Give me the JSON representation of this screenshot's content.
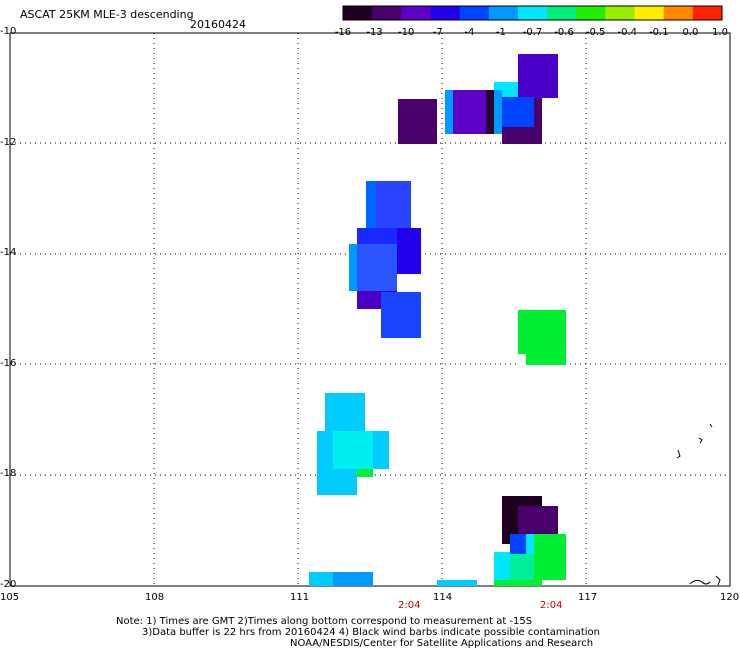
{
  "header": {
    "title": "ASCAT 25KM MLE-3 descending",
    "date": "20160424"
  },
  "colorbar": {
    "labels": [
      "-16",
      "-13",
      "-10",
      "-7",
      "-4",
      "-1",
      "-0.7",
      "-0.6",
      "-0.5",
      "-0.4",
      "-0.1",
      "0.0",
      "1.0"
    ],
    "colors": [
      "#200020",
      "#48006a",
      "#5d00c8",
      "#2200ee",
      "#0044ff",
      "#0099ff",
      "#00e6ff",
      "#00ee77",
      "#22ee00",
      "#99ee00",
      "#ffee00",
      "#ff8800",
      "#ff2200"
    ]
  },
  "axes": {
    "lat_labels": [
      "-10",
      "-12",
      "-14",
      "-16",
      "-18",
      "-20"
    ],
    "lon_labels": [
      "105",
      "108",
      "111",
      "114",
      "117",
      "120"
    ]
  },
  "pass_times": [
    "2:04",
    "2:04"
  ],
  "notes": {
    "line1": "Note: 1) Times are GMT 2)Times along bottom correspond to measurement at -15S",
    "line2": "3)Data buffer is 22 hrs from 20160424 4) Black wind barbs indicate possible contamination",
    "line3": "NOAA/NESDIS/Center for Satellite Applications and Research"
  },
  "legend": {}
}
